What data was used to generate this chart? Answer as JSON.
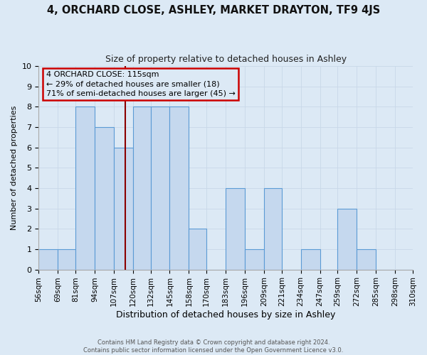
{
  "title": "4, ORCHARD CLOSE, ASHLEY, MARKET DRAYTON, TF9 4JS",
  "subtitle": "Size of property relative to detached houses in Ashley",
  "xlabel": "Distribution of detached houses by size in Ashley",
  "ylabel": "Number of detached properties",
  "bin_edges": [
    56,
    69,
    81,
    94,
    107,
    120,
    132,
    145,
    158,
    170,
    183,
    196,
    209,
    221,
    234,
    247,
    259,
    272,
    285,
    298,
    310
  ],
  "bar_heights": [
    1,
    1,
    8,
    7,
    6,
    8,
    8,
    8,
    2,
    0,
    4,
    1,
    4,
    0,
    1,
    0,
    3,
    1,
    0,
    0
  ],
  "bar_color": "#c5d8ee",
  "bar_edge_color": "#5b9bd5",
  "grid_color": "#c8d8e8",
  "background_color": "#dce9f5",
  "property_line_x": 115,
  "property_line_color": "#8b0000",
  "annotation_line1": "4 ORCHARD CLOSE: 115sqm",
  "annotation_line2": "← 29% of detached houses are smaller (18)",
  "annotation_line3": "71% of semi-detached houses are larger (45) →",
  "annotation_box_color": "#cc0000",
  "footer_line1": "Contains HM Land Registry data © Crown copyright and database right 2024.",
  "footer_line2": "Contains public sector information licensed under the Open Government Licence v3.0.",
  "ylim": [
    0,
    10
  ],
  "yticks": [
    0,
    1,
    2,
    3,
    4,
    5,
    6,
    7,
    8,
    9,
    10
  ]
}
